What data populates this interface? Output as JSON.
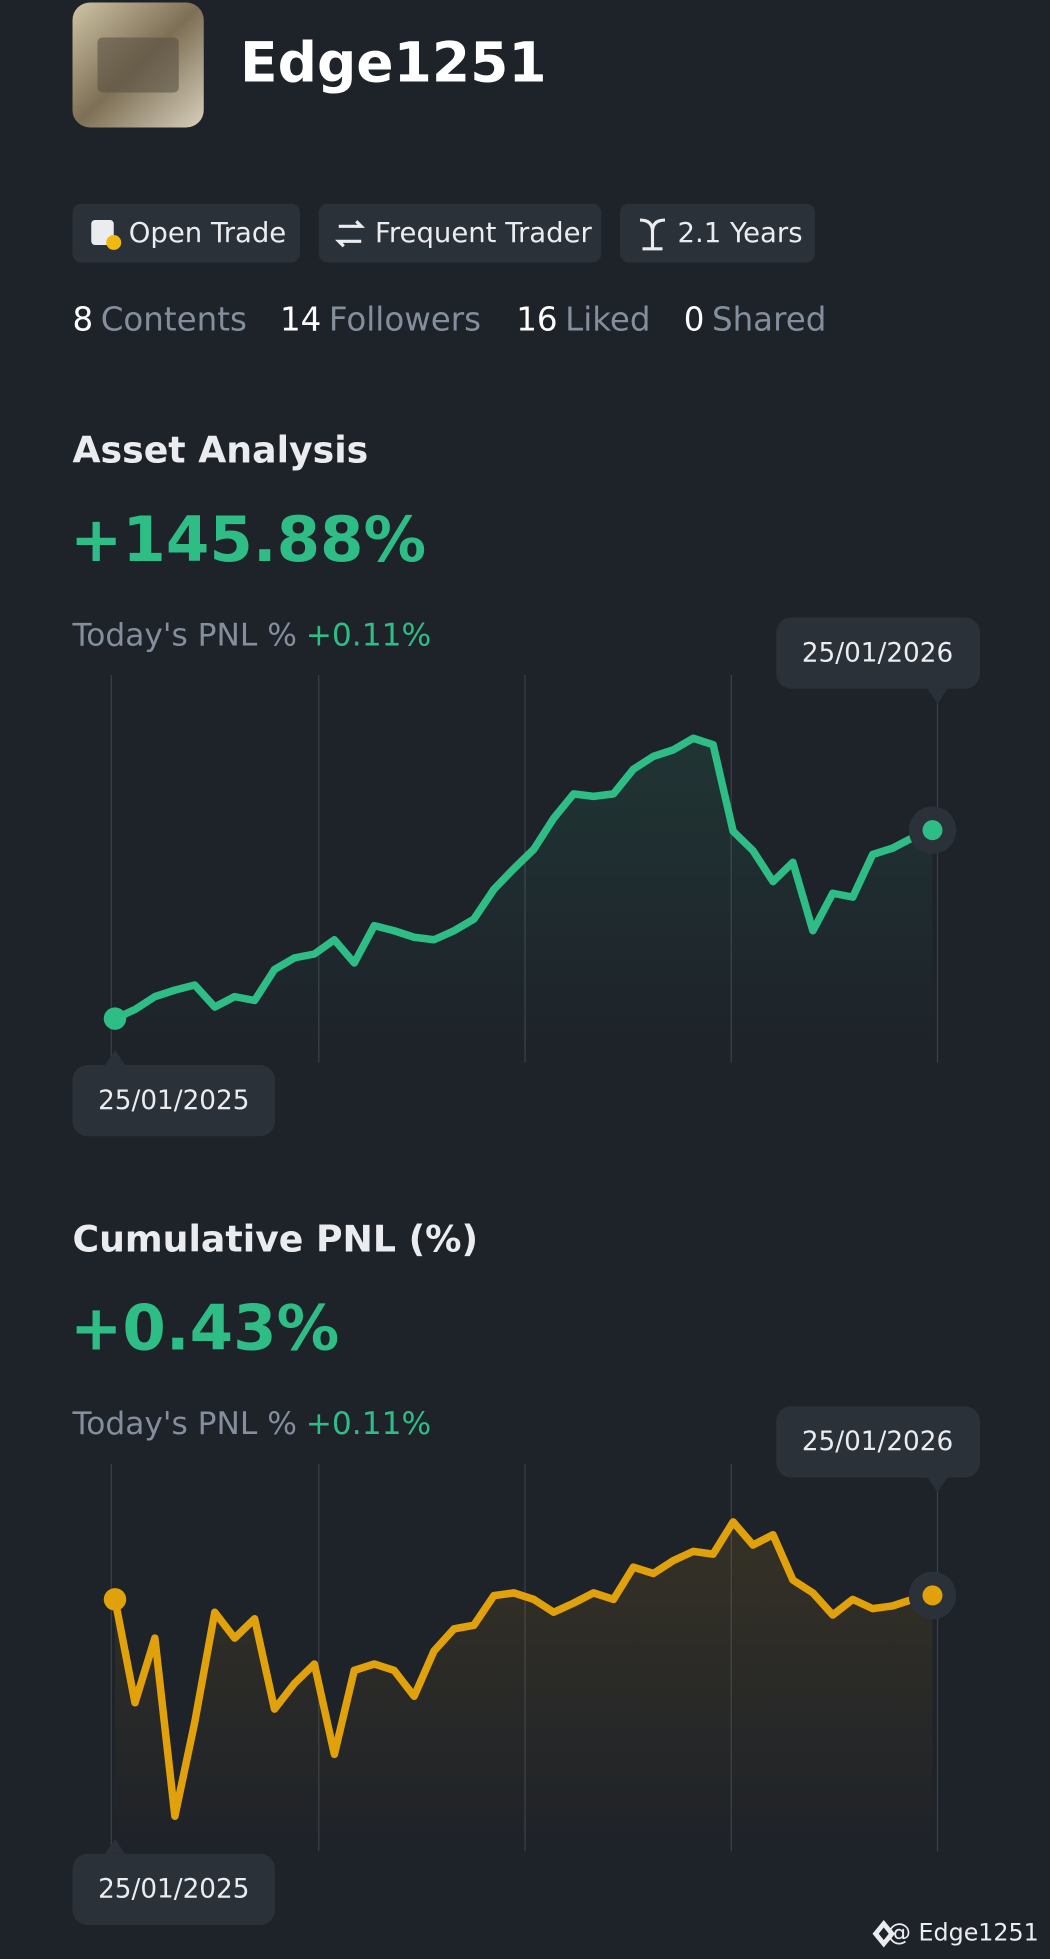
{
  "profile": {
    "name": "Edge1251",
    "badges": [
      "Open Trade",
      "Frequent Trader",
      "2.1 Years"
    ],
    "stats": [
      {
        "count": "8",
        "label": "Contents"
      },
      {
        "count": "14",
        "label": "Followers"
      },
      {
        "count": "16",
        "label": "Liked"
      },
      {
        "count": "0",
        "label": "Shared"
      }
    ],
    "watermark": "@ Edge1251"
  },
  "chart_data": [
    {
      "type": "line",
      "title": "Asset Analysis",
      "headline": "+145.88%",
      "pnl_label": "Today's PNL %",
      "pnl_value": "+0.11%",
      "categories": [
        "25/01/2025",
        null,
        null,
        null,
        null,
        null,
        null,
        null,
        null,
        null,
        null,
        null,
        null,
        null,
        null,
        null,
        null,
        null,
        null,
        null,
        null,
        null,
        null,
        null,
        null,
        null,
        null,
        null,
        null,
        null,
        null,
        null,
        null,
        null,
        null,
        null,
        null,
        null,
        null,
        null,
        null,
        "25/01/2026"
      ],
      "series": [
        {
          "name": "Asset Analysis",
          "color": "#2ebd85",
          "values": [
            0,
            7,
            17,
            22,
            26,
            9,
            17,
            14,
            38,
            47,
            50,
            61,
            43,
            72,
            68,
            63,
            61,
            68,
            77,
            100,
            116,
            131,
            155,
            174,
            172,
            174,
            193,
            203,
            208,
            217,
            212,
            145,
            130,
            106,
            121,
            68,
            97,
            94,
            127,
            132,
            140,
            145.88
          ]
        }
      ],
      "ylim": [
        -34,
        266
      ]
    },
    {
      "type": "line",
      "title": "Cumulative PNL (%)",
      "headline": "+0.43%",
      "pnl_label": "Today's PNL %",
      "pnl_value": "+0.11%",
      "categories": [
        "25/01/2025",
        null,
        null,
        null,
        null,
        null,
        null,
        null,
        null,
        null,
        null,
        null,
        null,
        null,
        null,
        null,
        null,
        null,
        null,
        null,
        null,
        null,
        null,
        null,
        null,
        null,
        null,
        null,
        null,
        null,
        null,
        null,
        null,
        null,
        null,
        null,
        null,
        null,
        null,
        null,
        null,
        "25/01/2026"
      ],
      "series": [
        {
          "name": "Cumulative PNL (%)",
          "color": "#e0a10b",
          "values": [
            0,
            -11.2,
            -4.2,
            -23.5,
            -13.3,
            -1.4,
            -4.2,
            -2.1,
            -11.9,
            -9.1,
            -7,
            -16.8,
            -7.7,
            -7,
            -7.7,
            -10.5,
            -5.6,
            -3.2,
            -2.8,
            0.4,
            0.7,
            0,
            -1.4,
            -0.4,
            0.7,
            0,
            3.5,
            2.8,
            4.2,
            5.2,
            4.9,
            8.4,
            5.9,
            7,
            2.1,
            0.7,
            -1.7,
            0,
            -1,
            -0.7,
            0,
            0.43
          ]
        }
      ],
      "ylim": [
        -27.3,
        14.7
      ]
    }
  ]
}
